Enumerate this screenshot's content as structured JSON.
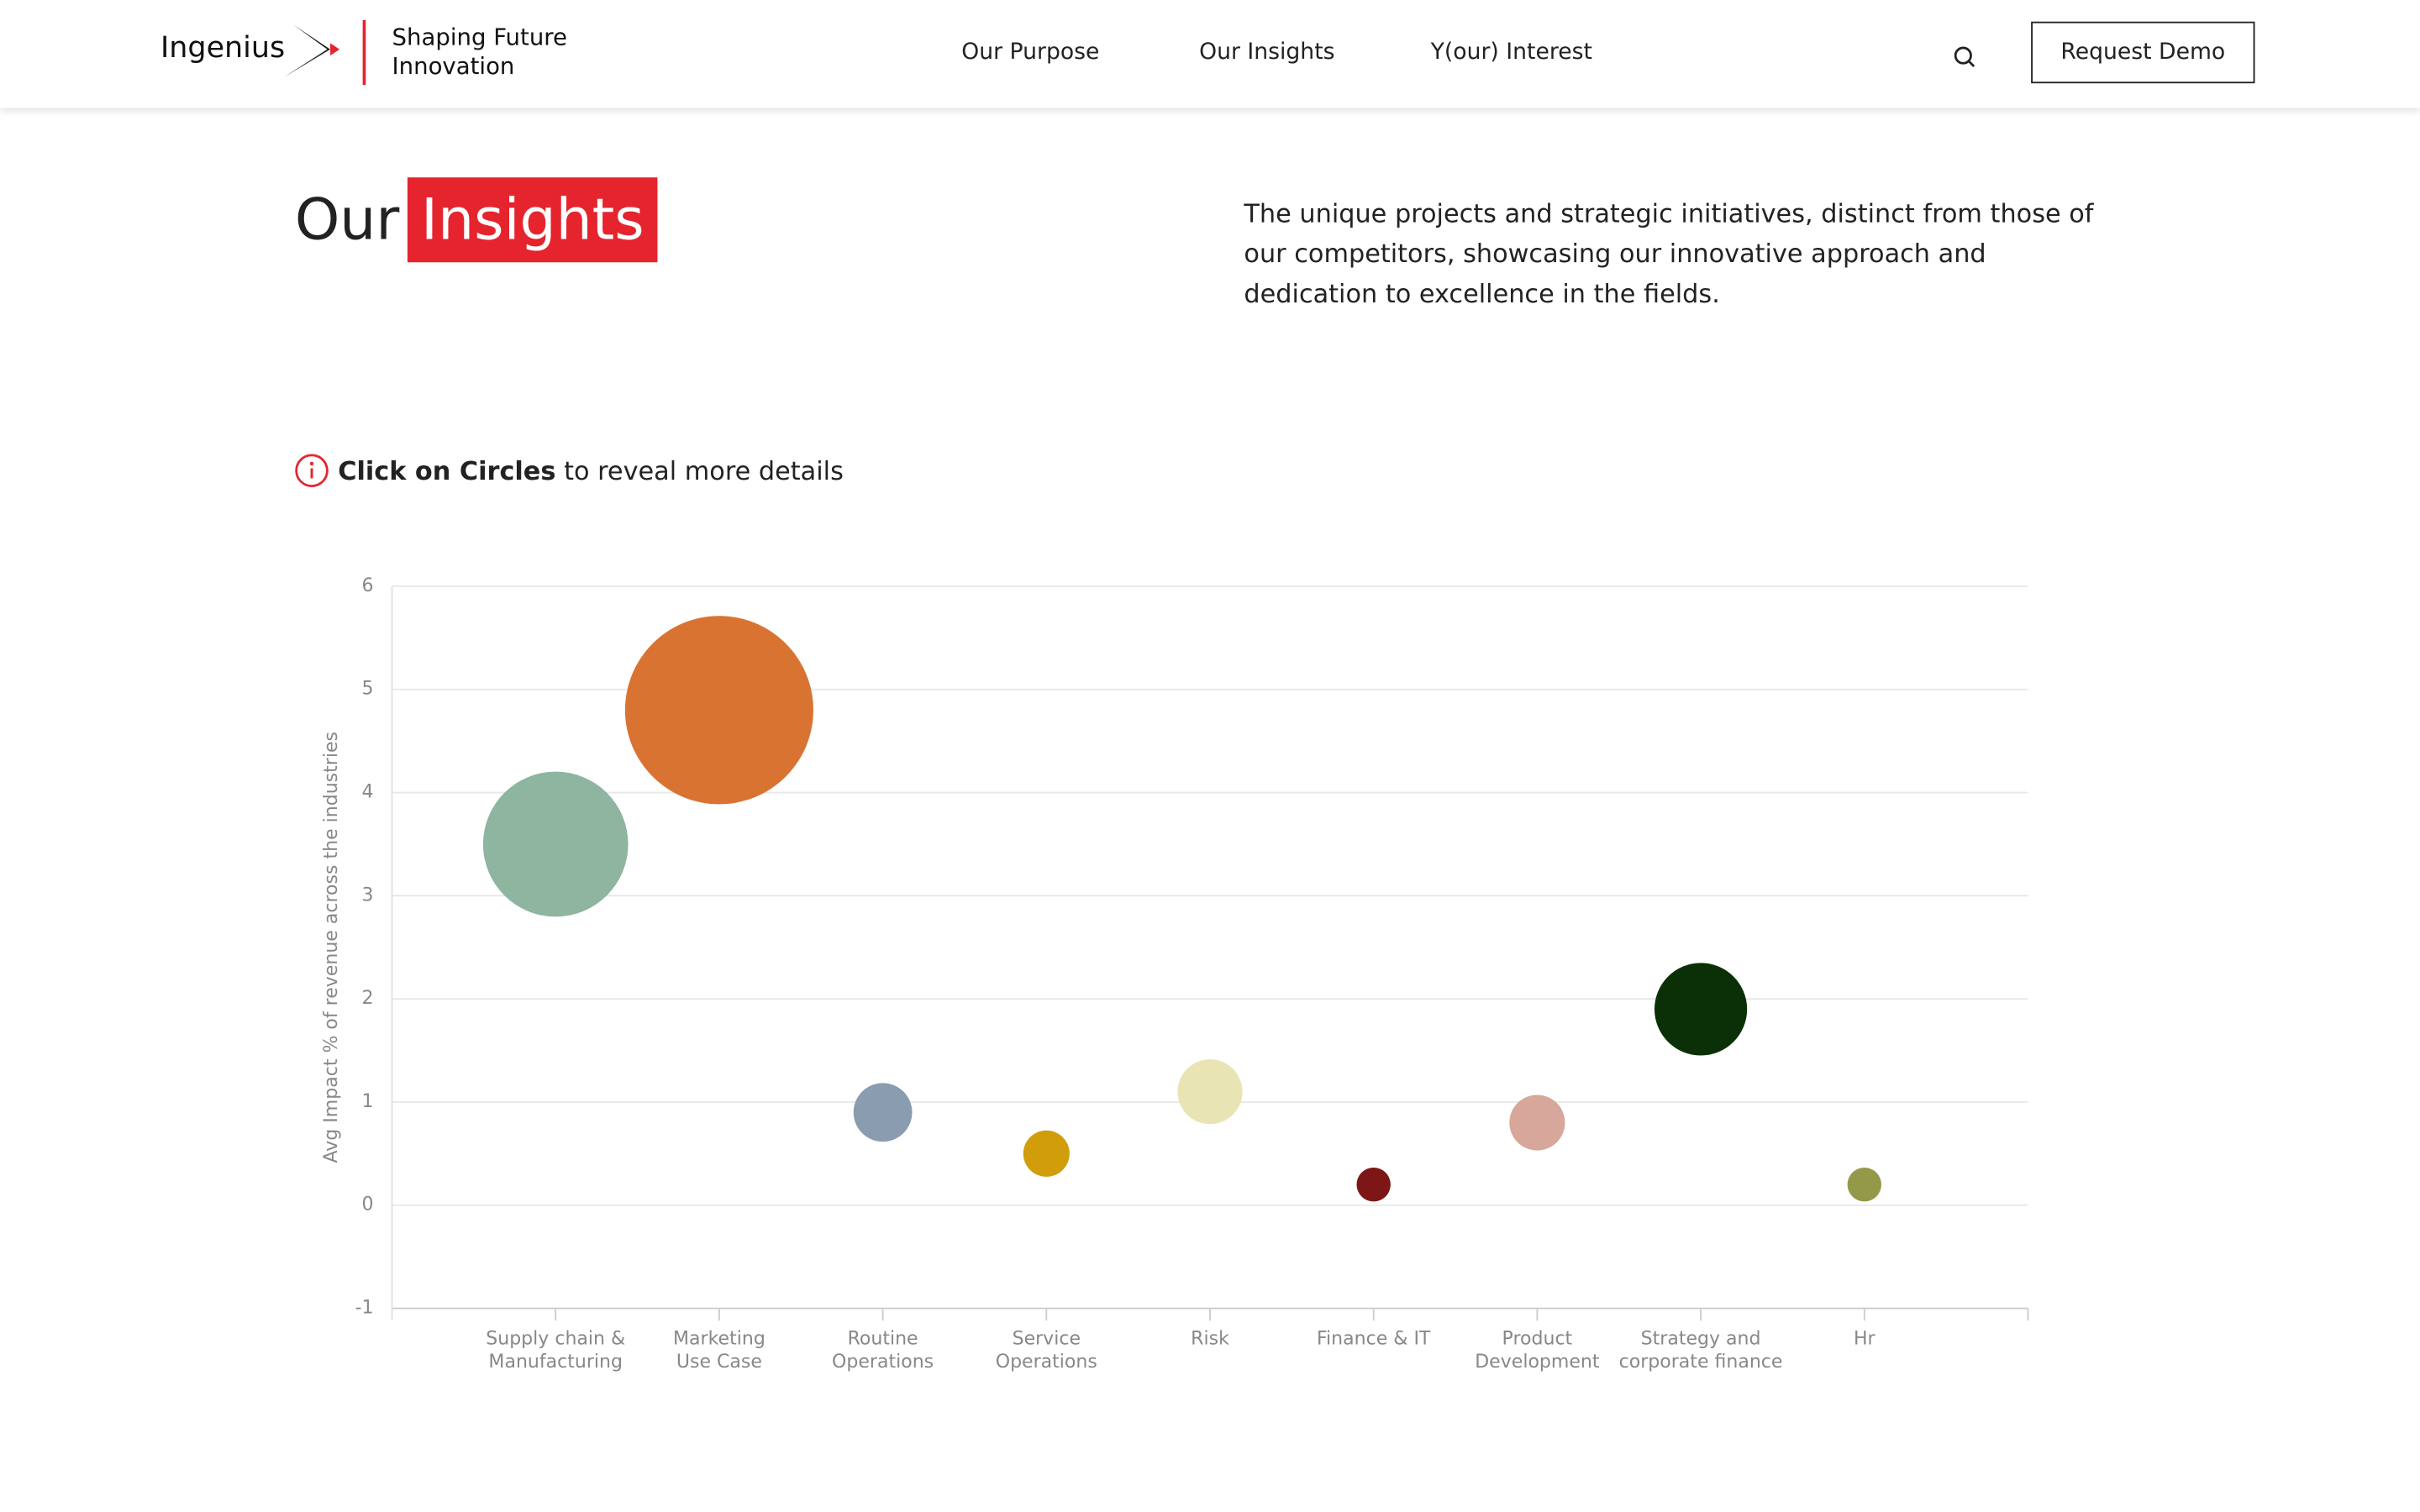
{
  "nav": {
    "logo": "Ingenius",
    "tagline": [
      "Shaping Future",
      "Innovation"
    ],
    "links": [
      "Our Purpose",
      "Our Insights",
      "Y(our) Interest"
    ],
    "button": "Request Demo"
  },
  "header": {
    "title": "Our",
    "title_highlight": "Insights",
    "description": "The unique projects and strategic initiatives, distinct from those of our competitors, showcasing our innovative approach and dedication to excellence in the fields."
  },
  "hint": {
    "bold": "Click on Circles",
    "rest": "to reveal more details"
  },
  "chart_data": {
    "type": "bubble",
    "y_label": "Avg Impact % of revenue across the industries",
    "categories": [
      [
        "Supply chain &",
        "Manufacturing"
      ],
      [
        "Marketing",
        "Use Case"
      ],
      [
        "Routine",
        "Operations"
      ],
      [
        "Service",
        "Operations"
      ],
      [
        "Risk"
      ],
      [
        "Finance & IT"
      ],
      [
        "Product",
        "Development"
      ],
      [
        "Strategy and",
        "corporate finance"
      ],
      [
        "Hr"
      ]
    ],
    "values": [
      3.5,
      4.8,
      0.9,
      0.5,
      1.1,
      0.2,
      0.8,
      1.9,
      0.2
    ],
    "sizes": [
      47,
      61,
      19,
      15,
      21,
      11,
      18,
      30,
      11
    ],
    "colors": [
      "#8db5a0",
      "#d97332",
      "#8a9cb0",
      "#d19d0a",
      "#e8e4b4",
      "#7d1616",
      "#d6a79a",
      "#0b3007",
      "#94994a"
    ],
    "ylim": [
      -1,
      6
    ],
    "yticks": [
      -1,
      0,
      1,
      2,
      3,
      4,
      5,
      6
    ],
    "grid": true
  }
}
